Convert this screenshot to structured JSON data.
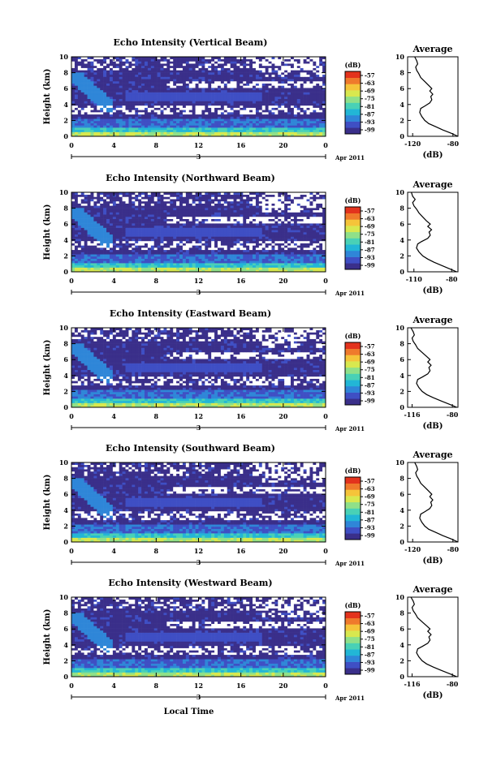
{
  "figure": {
    "xlabel": "Local Time",
    "date_label": "Apr 2011",
    "day_label": "3"
  },
  "colors": {
    "scale": [
      "#3a2f8a",
      "#3f4fc4",
      "#2f86d8",
      "#22b6d6",
      "#49d1b6",
      "#8fe089",
      "#d8e84f",
      "#f5c43a",
      "#ef7a2c",
      "#e3331d"
    ],
    "empty": "#ffffff",
    "frame": "#000000"
  },
  "chart_data": [
    {
      "type": "heatmap",
      "title": "Echo Intensity (Vertical Beam)",
      "ylabel": "Height (km)",
      "x_ticks": [
        "0",
        "4",
        "8",
        "12",
        "16",
        "20",
        "0"
      ],
      "y_ticks": [
        "0",
        "2",
        "4",
        "6",
        "8",
        "10"
      ],
      "xlim": [
        0,
        24
      ],
      "ylim": [
        0,
        10
      ],
      "colorbar": {
        "label": "(dB)",
        "ticks": [
          "-57",
          "-63",
          "-69",
          "-75",
          "-81",
          "-87",
          "-93",
          "-99"
        ]
      }
    },
    {
      "type": "line",
      "title": "Average",
      "xlabel": "(dB)",
      "x_ticks": [
        "-120",
        "-80"
      ],
      "y_ticks": [
        "0",
        "2",
        "4",
        "6",
        "8",
        "10"
      ],
      "xlim": [
        -125,
        -75
      ],
      "ylim": [
        0,
        10
      ],
      "x": [
        -75,
        -82,
        -90,
        -97,
        -104,
        -108,
        -111,
        -113,
        -112,
        -108,
        -103,
        -101,
        -102,
        -100,
        -103,
        -101,
        -104,
        -108,
        -112,
        -114,
        -116,
        -117,
        -115,
        -116,
        -118
      ],
      "y": [
        0,
        0.4,
        0.8,
        1.2,
        1.6,
        2.0,
        2.5,
        3.0,
        3.5,
        3.8,
        4.2,
        4.6,
        5.0,
        5.3,
        5.7,
        6.0,
        6.4,
        6.9,
        7.4,
        7.9,
        8.3,
        8.7,
        9.1,
        9.5,
        10.0
      ]
    },
    {
      "type": "heatmap",
      "title": "Echo Intensity (Northward Beam)",
      "ylabel": "Height (km)",
      "x_ticks": [
        "0",
        "4",
        "8",
        "12",
        "16",
        "20",
        "0"
      ],
      "y_ticks": [
        "0",
        "2",
        "4",
        "6",
        "8",
        "10"
      ],
      "xlim": [
        0,
        24
      ],
      "ylim": [
        0,
        10
      ],
      "colorbar": {
        "label": "(dB)",
        "ticks": [
          "-57",
          "-63",
          "-69",
          "-75",
          "-81",
          "-87",
          "-93",
          "-99"
        ]
      }
    },
    {
      "type": "line",
      "title": "Average",
      "xlabel": "(dB)",
      "x_ticks": [
        "-110",
        "-80"
      ],
      "y_ticks": [
        "0",
        "2",
        "4",
        "6",
        "8",
        "10"
      ],
      "xlim": [
        -115,
        -75
      ],
      "ylim": [
        0,
        10
      ],
      "x": [
        -76,
        -82,
        -88,
        -94,
        -99,
        -103,
        -106,
        -108,
        -107,
        -104,
        -99,
        -97,
        -98,
        -96,
        -99,
        -97,
        -100,
        -103,
        -106,
        -108,
        -110,
        -111,
        -109,
        -111,
        -112
      ],
      "y": [
        0,
        0.4,
        0.8,
        1.2,
        1.6,
        2.0,
        2.5,
        3.0,
        3.5,
        3.8,
        4.2,
        4.6,
        5.0,
        5.3,
        5.7,
        6.0,
        6.4,
        6.9,
        7.4,
        7.9,
        8.3,
        8.7,
        9.1,
        9.5,
        10.0
      ]
    },
    {
      "type": "heatmap",
      "title": "Echo Intensity (Eastward Beam)",
      "ylabel": "Height (km)",
      "x_ticks": [
        "0",
        "4",
        "8",
        "12",
        "16",
        "20",
        "0"
      ],
      "y_ticks": [
        "0",
        "2",
        "4",
        "6",
        "8",
        "10"
      ],
      "xlim": [
        0,
        24
      ],
      "ylim": [
        0,
        10
      ],
      "colorbar": {
        "label": "(dB)",
        "ticks": [
          "-57",
          "-63",
          "-69",
          "-75",
          "-81",
          "-87",
          "-93",
          "-99"
        ]
      }
    },
    {
      "type": "line",
      "title": "Average",
      "xlabel": "(dB)",
      "x_ticks": [
        "-116",
        "-80"
      ],
      "y_ticks": [
        "0",
        "2",
        "4",
        "6",
        "8",
        "10"
      ],
      "xlim": [
        -120,
        -75
      ],
      "ylim": [
        0,
        10
      ],
      "x": [
        -76,
        -83,
        -90,
        -97,
        -103,
        -107,
        -110,
        -112,
        -111,
        -107,
        -102,
        -100,
        -101,
        -99,
        -102,
        -100,
        -103,
        -107,
        -111,
        -113,
        -115,
        -116,
        -114,
        -115,
        -117
      ],
      "y": [
        0,
        0.4,
        0.8,
        1.2,
        1.6,
        2.0,
        2.5,
        3.0,
        3.5,
        3.8,
        4.2,
        4.6,
        5.0,
        5.3,
        5.7,
        6.0,
        6.4,
        6.9,
        7.4,
        7.9,
        8.3,
        8.7,
        9.1,
        9.5,
        10.0
      ]
    },
    {
      "type": "heatmap",
      "title": "Echo Intensity (Southward Beam)",
      "ylabel": "Height (km)",
      "x_ticks": [
        "0",
        "4",
        "8",
        "12",
        "16",
        "20",
        "0"
      ],
      "y_ticks": [
        "0",
        "2",
        "4",
        "6",
        "8",
        "10"
      ],
      "xlim": [
        0,
        24
      ],
      "ylim": [
        0,
        10
      ],
      "colorbar": {
        "label": "(dB)",
        "ticks": [
          "-57",
          "-63",
          "-69",
          "-75",
          "-81",
          "-87",
          "-93",
          "-99"
        ]
      }
    },
    {
      "type": "line",
      "title": "Average",
      "xlabel": "(dB)",
      "x_ticks": [
        "-120",
        "-80"
      ],
      "y_ticks": [
        "0",
        "2",
        "4",
        "6",
        "8",
        "10"
      ],
      "xlim": [
        -125,
        -75
      ],
      "ylim": [
        0,
        10
      ],
      "x": [
        -75,
        -82,
        -90,
        -97,
        -104,
        -108,
        -111,
        -113,
        -112,
        -108,
        -103,
        -101,
        -102,
        -100,
        -103,
        -101,
        -104,
        -108,
        -112,
        -114,
        -116,
        -117,
        -115,
        -116,
        -118
      ],
      "y": [
        0,
        0.4,
        0.8,
        1.2,
        1.6,
        2.0,
        2.5,
        3.0,
        3.5,
        3.8,
        4.2,
        4.6,
        5.0,
        5.3,
        5.7,
        6.0,
        6.4,
        6.9,
        7.4,
        7.9,
        8.3,
        8.7,
        9.1,
        9.5,
        10.0
      ]
    },
    {
      "type": "heatmap",
      "title": "Echo Intensity (Westward Beam)",
      "ylabel": "Height (km)",
      "x_ticks": [
        "0",
        "4",
        "8",
        "12",
        "16",
        "20",
        "0"
      ],
      "y_ticks": [
        "0",
        "2",
        "4",
        "6",
        "8",
        "10"
      ],
      "xlim": [
        0,
        24
      ],
      "ylim": [
        0,
        10
      ],
      "colorbar": {
        "label": "(dB)",
        "ticks": [
          "-57",
          "-63",
          "-69",
          "-75",
          "-81",
          "-87",
          "-93",
          "-99"
        ]
      }
    },
    {
      "type": "line",
      "title": "Average",
      "xlabel": "(dB)",
      "x_ticks": [
        "-116",
        "-80"
      ],
      "y_ticks": [
        "0",
        "2",
        "4",
        "6",
        "8",
        "10"
      ],
      "xlim": [
        -120,
        -75
      ],
      "ylim": [
        0,
        10
      ],
      "x": [
        -76,
        -83,
        -90,
        -97,
        -103,
        -107,
        -110,
        -112,
        -111,
        -107,
        -102,
        -100,
        -101,
        -99,
        -102,
        -100,
        -103,
        -107,
        -111,
        -113,
        -115,
        -116,
        -114,
        -115,
        -117
      ],
      "y": [
        0,
        0.4,
        0.8,
        1.2,
        1.6,
        2.0,
        2.5,
        3.0,
        3.5,
        3.8,
        4.2,
        4.6,
        5.0,
        5.3,
        5.7,
        6.0,
        6.4,
        6.9,
        7.4,
        7.9,
        8.3,
        8.7,
        9.1,
        9.5,
        10.0
      ]
    }
  ]
}
